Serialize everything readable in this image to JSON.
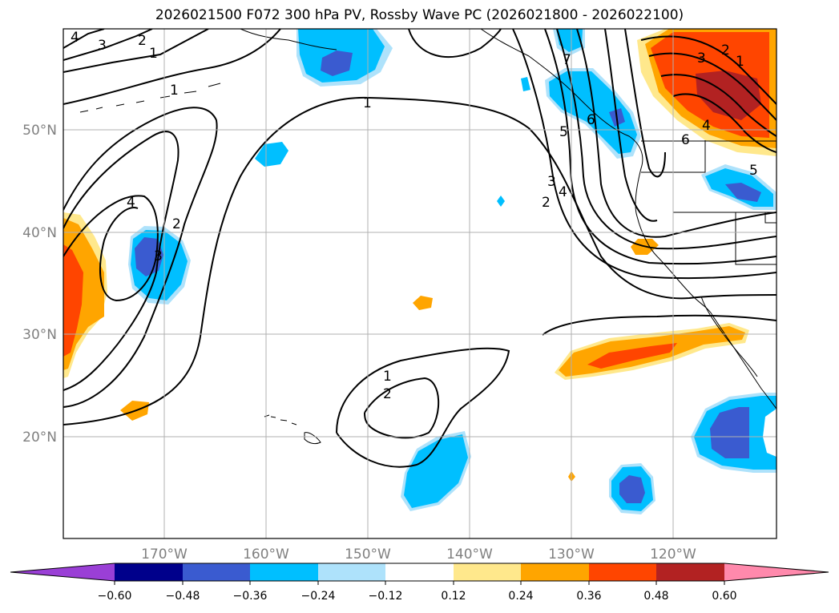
{
  "title": "2026021500 F072 300 hPa PV, Rossby Wave PC (2026021800 - 2026022100)",
  "map": {
    "lat_labels": [
      "50°N",
      "40°N",
      "30°N",
      "20°N"
    ],
    "lon_labels": [
      "170°W",
      "160°W",
      "150°W",
      "140°W",
      "130°W",
      "120°W"
    ],
    "contour_labels": [
      "4",
      "3",
      "2",
      "1",
      "1",
      "4",
      "3",
      "2",
      "1",
      "2",
      "1",
      "7",
      "6",
      "5",
      "4",
      "3",
      "2",
      "3",
      "2",
      "1",
      "4",
      "6",
      "5"
    ]
  },
  "colorbar": {
    "ticks": [
      "−0.60",
      "−0.48",
      "−0.36",
      "−0.24",
      "−0.12",
      "0.12",
      "0.24",
      "0.36",
      "0.48",
      "0.60"
    ],
    "colors": [
      "#9a3fd6",
      "#00008b",
      "#3a5bd0",
      "#00bfff",
      "#aee2fb",
      "#ffffff",
      "#ffe88c",
      "#ffa500",
      "#ff4500",
      "#b22222",
      "#ff89ac"
    ]
  },
  "colors": {
    "neg_light": "#aee2fb",
    "neg_mid": "#00bfff",
    "neg_strong": "#3a5bd0",
    "pos_light": "#ffe88c",
    "pos_mid": "#ffa500",
    "pos_strong": "#ff4500",
    "pos_max": "#b22222"
  }
}
